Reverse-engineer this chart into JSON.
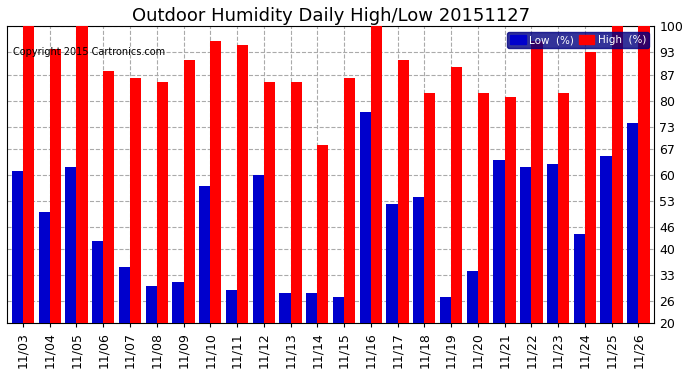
{
  "title": "Outdoor Humidity Daily High/Low 20151127",
  "copyright": "Copyright 2015 Cartronics.com",
  "dates": [
    "11/03",
    "11/04",
    "11/05",
    "11/06",
    "11/07",
    "11/08",
    "11/09",
    "11/10",
    "11/11",
    "11/12",
    "11/13",
    "11/14",
    "11/15",
    "11/16",
    "11/17",
    "11/18",
    "11/19",
    "11/20",
    "11/21",
    "11/22",
    "11/23",
    "11/24",
    "11/25",
    "11/26"
  ],
  "high": [
    100,
    94,
    100,
    88,
    86,
    85,
    91,
    96,
    95,
    85,
    85,
    68,
    86,
    100,
    91,
    82,
    89,
    82,
    81,
    96,
    82,
    93,
    100,
    100
  ],
  "low": [
    61,
    50,
    62,
    42,
    35,
    30,
    31,
    57,
    29,
    60,
    28,
    28,
    27,
    77,
    52,
    54,
    27,
    34,
    64,
    62,
    63,
    44,
    65,
    74
  ],
  "bar_width": 0.42,
  "ylim_min": 20,
  "ylim_max": 100,
  "yticks": [
    20,
    26,
    33,
    40,
    46,
    53,
    60,
    67,
    73,
    80,
    87,
    93,
    100
  ],
  "high_color": "#ff0000",
  "low_color": "#0000cc",
  "bg_color": "#ffffff",
  "grid_color": "#aaaaaa",
  "title_fontsize": 13,
  "tick_fontsize": 9,
  "legend_low_label": "Low  (%)",
  "legend_high_label": "High  (%)"
}
